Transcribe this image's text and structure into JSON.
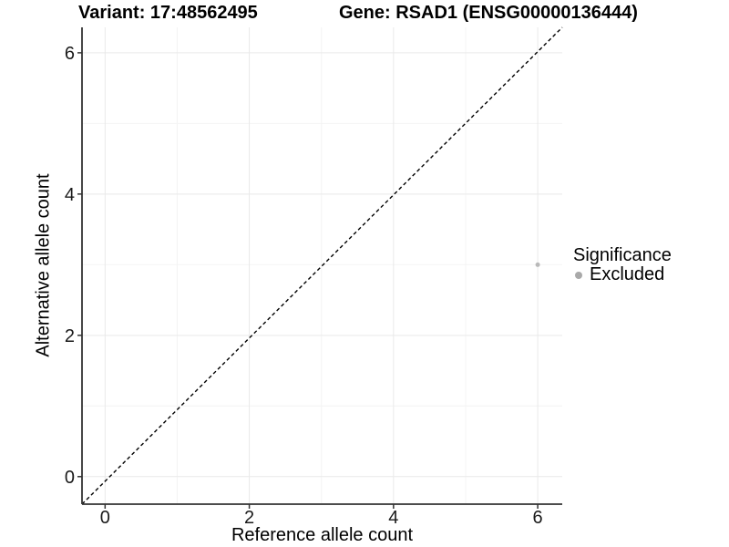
{
  "titles": {
    "variant": "Variant: 17:48562495",
    "gene": "Gene: RSAD1 (ENSG00000136444)"
  },
  "axes": {
    "x_label": "Reference allele count",
    "y_label": "Alternative allele count"
  },
  "legend": {
    "title": "Significance",
    "items": [
      {
        "label": "Excluded",
        "color": "#a9a9a9"
      }
    ]
  },
  "colors": {
    "background": "#ffffff",
    "grid_major": "#e9e9e9",
    "grid_minor": "#f4f4f4",
    "axis_line": "#333333",
    "tick_mark": "#333333",
    "tick_label": "#1a1a1a",
    "reference_line": "#000000",
    "point": "#b9b9b9"
  },
  "chart_data": {
    "type": "scatter",
    "title": "Variant: 17:48562495 — Gene: RSAD1 (ENSG00000136444)",
    "xlabel": "Reference allele count",
    "ylabel": "Alternative allele count",
    "xlim": [
      -0.32,
      6.34
    ],
    "ylim": [
      -0.39,
      6.36
    ],
    "x_ticks": [
      0,
      2,
      4,
      6
    ],
    "y_ticks": [
      0,
      2,
      4,
      6
    ],
    "x_minor_ticks": [
      1,
      3,
      5
    ],
    "y_minor_ticks": [
      1,
      3,
      5
    ],
    "grid": "major+minor",
    "legend_position": "right",
    "legend_title": "Significance",
    "series": [
      {
        "name": "Excluded",
        "color": "#b9b9b9",
        "point_radius_px": 2.5,
        "points": [
          {
            "x": 6,
            "y": 3
          }
        ]
      }
    ],
    "reference_line": {
      "equation": "y = x",
      "style": "dashed",
      "color": "#000000",
      "from": [
        -0.32,
        -0.39
      ],
      "to": [
        6.34,
        6.36
      ]
    }
  }
}
